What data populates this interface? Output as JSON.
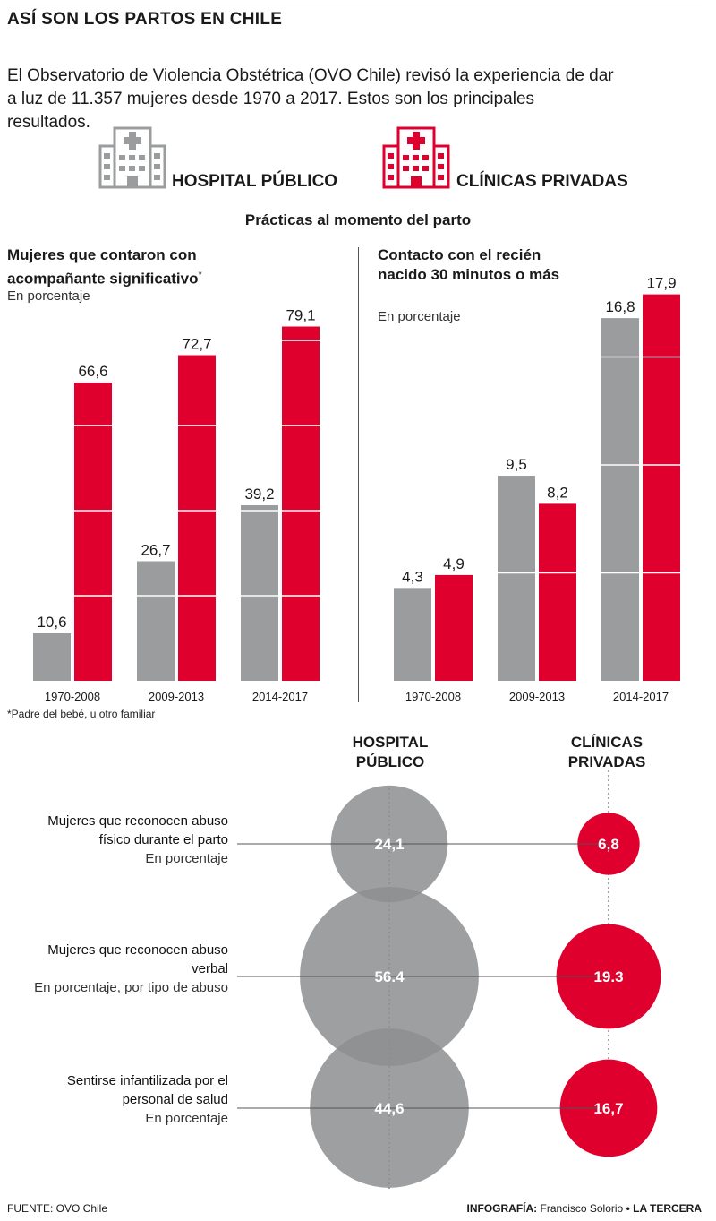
{
  "header": {
    "title": "ASÍ SON LOS PARTOS EN CHILE",
    "intro": "El Observatorio de Violencia Obstétrica (OVO Chile) revisó la experiencia de dar a luz de 11.357 mujeres desde 1970 a 2017. Estos son los principales resultados."
  },
  "legend": {
    "public_label": "HOSPITAL PÚBLICO",
    "private_label": "CLÍNICAS PRIVADAS",
    "public_color": "#9b9c9e",
    "private_color": "#e0002d"
  },
  "section_title": "Prácticas al momento del parto",
  "chart_data": [
    {
      "type": "bar",
      "title": "Mujeres que contaron con acompañante significativo",
      "title_mark": "*",
      "unit": "En porcentaje",
      "categories": [
        "1970-2008",
        "2009-2013",
        "2014-2017"
      ],
      "series": [
        {
          "name": "HOSPITAL PÚBLICO",
          "values": [
            10.6,
            26.7,
            39.2
          ],
          "labels": [
            "10,6",
            "26,7",
            "39,2"
          ]
        },
        {
          "name": "CLÍNICAS PRIVADAS",
          "values": [
            66.6,
            72.7,
            79.1
          ],
          "labels": [
            "66,6",
            "72,7",
            "79,1"
          ]
        }
      ],
      "ylim": [
        0,
        80
      ],
      "footnote": "*Padre del bebé, u otro familiar"
    },
    {
      "type": "bar",
      "title": "Contacto con el recién nacido 30 minutos o más",
      "unit": "En porcentaje",
      "categories": [
        "1970-2008",
        "2009-2013",
        "2014-2017"
      ],
      "series": [
        {
          "name": "HOSPITAL PÚBLICO",
          "values": [
            4.3,
            9.5,
            16.8
          ],
          "labels": [
            "4,3",
            "9,5",
            "16,8"
          ]
        },
        {
          "name": "CLÍNICAS PRIVADAS",
          "values": [
            4.9,
            8.2,
            17.9
          ],
          "labels": [
            "4,9",
            "8,2",
            "17,9"
          ]
        }
      ],
      "ylim": [
        0,
        18
      ]
    },
    {
      "type": "bubble",
      "columns": [
        "HOSPITAL PÚBLICO",
        "CLÍNICAS PRIVADAS"
      ],
      "rows": [
        {
          "label": "Mujeres que reconocen abuso físico durante el parto",
          "unit": "En porcentaje",
          "public": 24.1,
          "private": 6.8,
          "public_label": "24,1",
          "private_label": "6,8"
        },
        {
          "label": "Mujeres que reconocen abuso verbal",
          "unit": "En porcentaje, por tipo de abuso",
          "public": 56.4,
          "private": 19.3,
          "public_label": "56.4",
          "private_label": "19.3"
        },
        {
          "label": "Sentirse infantilizada por el personal de salud",
          "unit": "En porcentaje",
          "public": 44.6,
          "private": 16.7,
          "public_label": "44,6",
          "private_label": "16,7"
        }
      ]
    }
  ],
  "footer": {
    "source": "FUENTE: OVO Chile",
    "credit_prefix": "INFOGRAFÍA:",
    "credit_author": "Francisco Solorio",
    "credit_sep": "•",
    "credit_outlet": "LA TERCERA"
  }
}
